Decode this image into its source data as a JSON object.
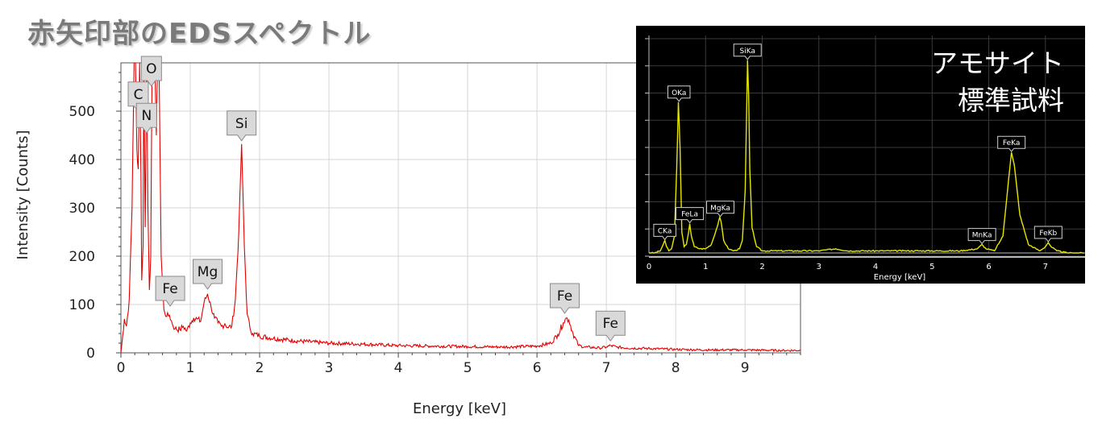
{
  "title": "赤矢印部のEDSスペクトル",
  "chart_data": [
    {
      "type": "line",
      "title": "",
      "xlabel": "Energy [keV]",
      "ylabel": "Intensity [Counts]",
      "xlim": [
        0,
        9.8
      ],
      "ylim": [
        0,
        600
      ],
      "xticks": [
        "0",
        "1",
        "2",
        "3",
        "4",
        "5",
        "6",
        "7",
        "8",
        "9"
      ],
      "yticks": [
        "0",
        "100",
        "200",
        "300",
        "400",
        "500"
      ],
      "grid": true,
      "color": "#e00000",
      "series": [
        {
          "name": "",
          "x": [
            0.0,
            0.05,
            0.08,
            0.12,
            0.16,
            0.19,
            0.21,
            0.23,
            0.25,
            0.27,
            0.29,
            0.3,
            0.32,
            0.33,
            0.35,
            0.37,
            0.39,
            0.41,
            0.43,
            0.45,
            0.47,
            0.49,
            0.51,
            0.53,
            0.55,
            0.58,
            0.62,
            0.66,
            0.7,
            0.74,
            0.78,
            0.85,
            0.9,
            0.95,
            1.0,
            1.05,
            1.1,
            1.15,
            1.2,
            1.25,
            1.3,
            1.35,
            1.4,
            1.45,
            1.5,
            1.55,
            1.6,
            1.65,
            1.7,
            1.74,
            1.78,
            1.82,
            1.86,
            1.9,
            2.0,
            2.2,
            2.5,
            3.0,
            3.5,
            4.0,
            4.5,
            5.0,
            5.5,
            6.0,
            6.2,
            6.3,
            6.38,
            6.42,
            6.46,
            6.52,
            6.6,
            6.7,
            6.9,
            7.0,
            7.06,
            7.15,
            7.3,
            7.6,
            8.0,
            8.5,
            9.0,
            9.5,
            9.8
          ],
          "values": [
            0,
            70,
            55,
            110,
            300,
            600,
            600,
            420,
            380,
            600,
            360,
            150,
            220,
            600,
            260,
            600,
            300,
            130,
            200,
            600,
            600,
            600,
            450,
            600,
            600,
            200,
            90,
            75,
            78,
            60,
            50,
            48,
            55,
            45,
            62,
            72,
            70,
            65,
            105,
            122,
            95,
            72,
            62,
            55,
            60,
            52,
            56,
            110,
            250,
            432,
            220,
            80,
            52,
            40,
            35,
            30,
            25,
            20,
            18,
            15,
            14,
            13,
            12,
            14,
            20,
            38,
            62,
            72,
            68,
            40,
            15,
            12,
            10,
            12,
            15,
            12,
            10,
            9,
            7,
            6,
            6,
            5,
            5
          ]
        }
      ],
      "annotations": [
        {
          "label": "C",
          "x": 0.25,
          "y": 497
        },
        {
          "label": "O",
          "x": 0.44,
          "y": 550
        },
        {
          "label": "N",
          "x": 0.37,
          "y": 453
        },
        {
          "label": "Si",
          "x": 1.74,
          "y": 437
        },
        {
          "label": "Fe",
          "x": 0.71,
          "y": 95
        },
        {
          "label": "Mg",
          "x": 1.25,
          "y": 130
        },
        {
          "label": "Fe",
          "x": 6.4,
          "y": 80
        },
        {
          "label": "Fe",
          "x": 7.06,
          "y": 23
        }
      ]
    },
    {
      "type": "line",
      "title": "アモサイト\n標準試料",
      "title_lines": [
        "アモサイト",
        "標準試料"
      ],
      "xlabel": "Energy [keV]",
      "ylabel": "",
      "xlim": [
        0,
        7.7
      ],
      "ylim": [
        0,
        100
      ],
      "xticks": [
        "0",
        "1",
        "2",
        "3",
        "4",
        "5",
        "6",
        "7"
      ],
      "grid": true,
      "background": "#000000",
      "color": "#e6e600",
      "series": [
        {
          "name": "",
          "x": [
            0.0,
            0.1,
            0.2,
            0.25,
            0.28,
            0.31,
            0.35,
            0.4,
            0.45,
            0.49,
            0.52,
            0.55,
            0.58,
            0.62,
            0.66,
            0.7,
            0.72,
            0.75,
            0.8,
            0.9,
            1.0,
            1.1,
            1.2,
            1.25,
            1.28,
            1.32,
            1.4,
            1.5,
            1.6,
            1.65,
            1.7,
            1.72,
            1.74,
            1.76,
            1.78,
            1.82,
            1.9,
            2.0,
            2.5,
            3.0,
            3.3,
            3.5,
            4.0,
            4.5,
            5.0,
            5.5,
            5.8,
            5.88,
            5.95,
            6.1,
            6.25,
            6.35,
            6.4,
            6.45,
            6.55,
            6.7,
            6.9,
            7.0,
            7.05,
            7.1,
            7.2,
            7.4,
            7.7
          ],
          "values": [
            0,
            0,
            1,
            4,
            6,
            3,
            1,
            2,
            8,
            40,
            72,
            50,
            10,
            3,
            4,
            10,
            14,
            8,
            3,
            2,
            2,
            4,
            12,
            17,
            14,
            6,
            2,
            1,
            2,
            6,
            30,
            60,
            92,
            75,
            40,
            12,
            3,
            1,
            1,
            1,
            2,
            1,
            1,
            1,
            1,
            1,
            2,
            4,
            2,
            1,
            8,
            35,
            48,
            42,
            18,
            4,
            1,
            3,
            5,
            3,
            1,
            0,
            0
          ]
        }
      ],
      "annotations": [
        {
          "label": "CKa",
          "x": 0.28,
          "y": 6
        },
        {
          "label": "OKa",
          "x": 0.53,
          "y": 72
        },
        {
          "label": "FeLa",
          "x": 0.72,
          "y": 14
        },
        {
          "label": "MgKa",
          "x": 1.26,
          "y": 17
        },
        {
          "label": "SiKa",
          "x": 1.74,
          "y": 92
        },
        {
          "label": "MnKa",
          "x": 5.88,
          "y": 4
        },
        {
          "label": "FeKa",
          "x": 6.4,
          "y": 48
        },
        {
          "label": "FeKb",
          "x": 7.05,
          "y": 5
        }
      ]
    }
  ]
}
